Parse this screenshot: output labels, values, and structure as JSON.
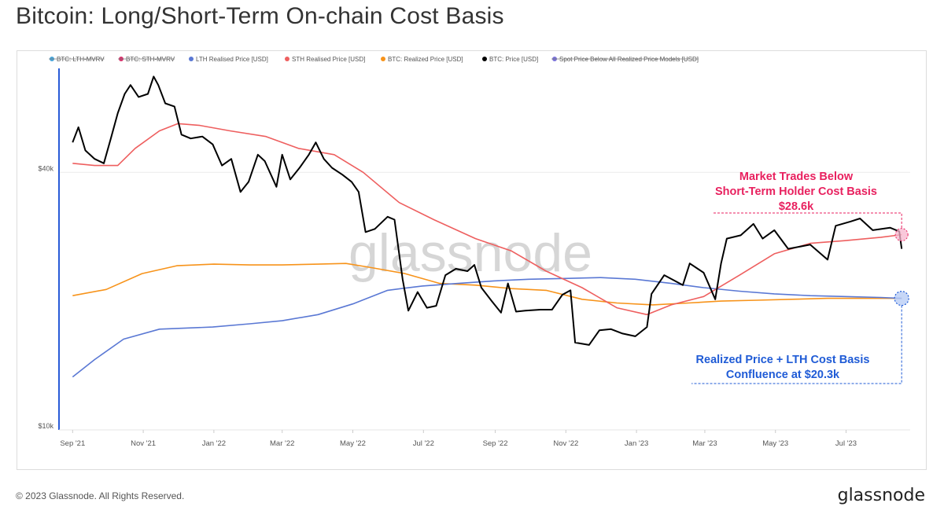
{
  "header": {
    "title": "Bitcoin: Long/Short-Term On-chain Cost Basis"
  },
  "footer": {
    "copyright": "© 2023 Glassnode. All Rights Reserved.",
    "brand": "glassnode"
  },
  "watermark": "glassnode",
  "colors": {
    "lth_mvrv": "#4aa5d9",
    "sth_mvrv": "#d6336c",
    "lth_price": "#5a78d4",
    "sth_price": "#ee5f5f",
    "realized": "#f7931a",
    "price": "#000000",
    "spot_below": "#7a72d9",
    "annot_red": "#e8215f",
    "annot_blue": "#1f5bd6"
  },
  "annotations": {
    "sth": [
      "Market Trades Below",
      "Short-Term Holder Cost Basis",
      "$28.6k"
    ],
    "lth": [
      "Realized Price + LTH Cost Basis",
      "Confluence at $20.3k"
    ]
  },
  "chart_data": {
    "type": "line",
    "title": "Bitcoin: Long/Short-Term On-chain Cost Basis",
    "y_scale": "log",
    "ylim": [
      10000,
      70000
    ],
    "y_ticks": [
      {
        "value": 40000,
        "label": "$40k"
      },
      {
        "value": 10000,
        "label": "$10k"
      }
    ],
    "x_ticks": [
      "Sep '21",
      "Nov '21",
      "Jan '22",
      "Mar '22",
      "May '22",
      "Jul '22",
      "Sep '22",
      "Nov '22",
      "Jan '23",
      "Mar '23",
      "May '23",
      "Jul '23"
    ],
    "legend": [
      {
        "name": "BTC: LTH-MVRV",
        "color": "#4aa5d9",
        "hidden": true
      },
      {
        "name": "BTC: STH-MVRV",
        "color": "#d6336c",
        "hidden": true
      },
      {
        "name": "LTH Realised Price [USD]",
        "color": "#5a78d4",
        "hidden": false
      },
      {
        "name": "STH Realised Price [USD]",
        "color": "#ee5f5f",
        "hidden": false
      },
      {
        "name": "BTC: Realized Price [USD]",
        "color": "#f7931a",
        "hidden": false
      },
      {
        "name": "BTC: Price [USD]",
        "color": "#000000",
        "hidden": false
      },
      {
        "name": "Spot Price Below All Realized Price Models [USD]",
        "color": "#7a72d9",
        "hidden": true
      }
    ],
    "legend_position": "top",
    "series": [
      {
        "name": "BTC: Price [USD]",
        "color": "#000000",
        "points": [
          [
            "2021-09-01",
            47000
          ],
          [
            "2021-09-06",
            51000
          ],
          [
            "2021-09-12",
            45000
          ],
          [
            "2021-09-20",
            43000
          ],
          [
            "2021-09-28",
            42000
          ],
          [
            "2021-10-04",
            48000
          ],
          [
            "2021-10-10",
            55000
          ],
          [
            "2021-10-16",
            61000
          ],
          [
            "2021-10-21",
            64000
          ],
          [
            "2021-10-28",
            60000
          ],
          [
            "2021-11-05",
            61000
          ],
          [
            "2021-11-10",
            67000
          ],
          [
            "2021-11-14",
            64000
          ],
          [
            "2021-11-20",
            58000
          ],
          [
            "2021-11-28",
            57000
          ],
          [
            "2021-12-04",
            49000
          ],
          [
            "2021-12-12",
            48000
          ],
          [
            "2021-12-22",
            48500
          ],
          [
            "2021-12-31",
            46500
          ],
          [
            "2022-01-08",
            41500
          ],
          [
            "2022-01-16",
            43000
          ],
          [
            "2022-01-24",
            36000
          ],
          [
            "2022-01-31",
            38000
          ],
          [
            "2022-02-08",
            44000
          ],
          [
            "2022-02-14",
            42500
          ],
          [
            "2022-02-24",
            37000
          ],
          [
            "2022-03-01",
            44000
          ],
          [
            "2022-03-08",
            38500
          ],
          [
            "2022-03-16",
            41000
          ],
          [
            "2022-03-24",
            44000
          ],
          [
            "2022-03-30",
            47000
          ],
          [
            "2022-04-06",
            43000
          ],
          [
            "2022-04-13",
            41000
          ],
          [
            "2022-04-22",
            39500
          ],
          [
            "2022-04-30",
            38000
          ],
          [
            "2022-05-06",
            36000
          ],
          [
            "2022-05-12",
            29000
          ],
          [
            "2022-05-20",
            29500
          ],
          [
            "2022-05-31",
            31500
          ],
          [
            "2022-06-06",
            31000
          ],
          [
            "2022-06-13",
            22500
          ],
          [
            "2022-06-18",
            19000
          ],
          [
            "2022-06-26",
            21000
          ],
          [
            "2022-07-04",
            19300
          ],
          [
            "2022-07-12",
            19500
          ],
          [
            "2022-07-20",
            23000
          ],
          [
            "2022-07-29",
            23800
          ],
          [
            "2022-08-08",
            23500
          ],
          [
            "2022-08-14",
            24300
          ],
          [
            "2022-08-20",
            21500
          ],
          [
            "2022-08-29",
            20000
          ],
          [
            "2022-09-06",
            18800
          ],
          [
            "2022-09-12",
            22000
          ],
          [
            "2022-09-19",
            18900
          ],
          [
            "2022-09-27",
            19000
          ],
          [
            "2022-10-10",
            19100
          ],
          [
            "2022-10-20",
            19100
          ],
          [
            "2022-10-29",
            20700
          ],
          [
            "2022-11-05",
            21200
          ],
          [
            "2022-11-09",
            16000
          ],
          [
            "2022-11-21",
            15800
          ],
          [
            "2022-11-30",
            17100
          ],
          [
            "2022-12-10",
            17200
          ],
          [
            "2022-12-20",
            16800
          ],
          [
            "2022-12-31",
            16550
          ],
          [
            "2023-01-10",
            17400
          ],
          [
            "2023-01-14",
            20800
          ],
          [
            "2023-01-25",
            23000
          ],
          [
            "2023-02-10",
            21800
          ],
          [
            "2023-02-16",
            24500
          ],
          [
            "2023-02-28",
            23300
          ],
          [
            "2023-03-10",
            20200
          ],
          [
            "2023-03-15",
            24500
          ],
          [
            "2023-03-20",
            28000
          ],
          [
            "2023-04-01",
            28500
          ],
          [
            "2023-04-12",
            30300
          ],
          [
            "2023-04-20",
            28000
          ],
          [
            "2023-04-30",
            29300
          ],
          [
            "2023-05-12",
            26500
          ],
          [
            "2023-05-31",
            27100
          ],
          [
            "2023-06-15",
            25000
          ],
          [
            "2023-06-22",
            30000
          ],
          [
            "2023-07-05",
            30700
          ],
          [
            "2023-07-13",
            31200
          ],
          [
            "2023-07-24",
            29300
          ],
          [
            "2023-08-08",
            29700
          ],
          [
            "2023-08-16",
            29100
          ],
          [
            "2023-08-18",
            26500
          ]
        ]
      },
      {
        "name": "STH Realised Price [USD]",
        "color": "#ee5f5f",
        "points": [
          [
            "2021-09-01",
            42000
          ],
          [
            "2021-09-20",
            41500
          ],
          [
            "2021-10-10",
            41500
          ],
          [
            "2021-10-25",
            45500
          ],
          [
            "2021-11-15",
            50000
          ],
          [
            "2021-12-01",
            52000
          ],
          [
            "2021-12-20",
            51500
          ],
          [
            "2022-01-15",
            50000
          ],
          [
            "2022-02-15",
            48500
          ],
          [
            "2022-03-15",
            45500
          ],
          [
            "2022-04-15",
            44000
          ],
          [
            "2022-05-10",
            40000
          ],
          [
            "2022-06-10",
            34000
          ],
          [
            "2022-07-10",
            31000
          ],
          [
            "2022-08-15",
            28000
          ],
          [
            "2022-09-15",
            26200
          ],
          [
            "2022-10-15",
            23500
          ],
          [
            "2022-11-15",
            21500
          ],
          [
            "2022-12-15",
            19300
          ],
          [
            "2023-01-10",
            18600
          ],
          [
            "2023-01-31",
            19600
          ],
          [
            "2023-02-28",
            20500
          ],
          [
            "2023-03-31",
            23000
          ],
          [
            "2023-04-30",
            25800
          ],
          [
            "2023-05-31",
            27300
          ],
          [
            "2023-06-30",
            27700
          ],
          [
            "2023-07-31",
            28200
          ],
          [
            "2023-08-18",
            28600
          ]
        ]
      },
      {
        "name": "BTC: Realized Price [USD]",
        "color": "#f7931a",
        "points": [
          [
            "2021-09-01",
            20600
          ],
          [
            "2021-09-30",
            21300
          ],
          [
            "2021-10-31",
            23200
          ],
          [
            "2021-11-30",
            24200
          ],
          [
            "2022-01-01",
            24400
          ],
          [
            "2022-02-01",
            24300
          ],
          [
            "2022-03-01",
            24300
          ],
          [
            "2022-04-01",
            24400
          ],
          [
            "2022-04-25",
            24500
          ],
          [
            "2022-05-15",
            24000
          ],
          [
            "2022-06-15",
            23200
          ],
          [
            "2022-07-15",
            22000
          ],
          [
            "2022-08-15",
            21800
          ],
          [
            "2022-09-15",
            21400
          ],
          [
            "2022-10-15",
            21200
          ],
          [
            "2022-11-15",
            20200
          ],
          [
            "2022-12-15",
            19800
          ],
          [
            "2023-01-15",
            19600
          ],
          [
            "2023-02-15",
            19800
          ],
          [
            "2023-03-15",
            20000
          ],
          [
            "2023-04-15",
            20100
          ],
          [
            "2023-05-15",
            20200
          ],
          [
            "2023-06-15",
            20300
          ],
          [
            "2023-07-15",
            20300
          ],
          [
            "2023-08-18",
            20300
          ]
        ]
      },
      {
        "name": "LTH Realised Price [USD]",
        "color": "#5a78d4",
        "points": [
          [
            "2021-09-01",
            13300
          ],
          [
            "2021-09-20",
            14600
          ],
          [
            "2021-10-15",
            16300
          ],
          [
            "2021-11-15",
            17200
          ],
          [
            "2021-12-31",
            17400
          ],
          [
            "2022-02-01",
            17700
          ],
          [
            "2022-03-01",
            18000
          ],
          [
            "2022-04-01",
            18600
          ],
          [
            "2022-05-01",
            19700
          ],
          [
            "2022-05-31",
            21200
          ],
          [
            "2022-06-30",
            21700
          ],
          [
            "2022-07-31",
            22000
          ],
          [
            "2022-08-31",
            22300
          ],
          [
            "2022-09-30",
            22500
          ],
          [
            "2022-10-31",
            22600
          ],
          [
            "2022-12-01",
            22700
          ],
          [
            "2022-12-31",
            22500
          ],
          [
            "2023-01-31",
            22000
          ],
          [
            "2023-02-28",
            21500
          ],
          [
            "2023-03-31",
            21100
          ],
          [
            "2023-04-30",
            20800
          ],
          [
            "2023-05-31",
            20600
          ],
          [
            "2023-06-30",
            20500
          ],
          [
            "2023-07-31",
            20400
          ],
          [
            "2023-08-18",
            20300
          ]
        ]
      }
    ]
  }
}
